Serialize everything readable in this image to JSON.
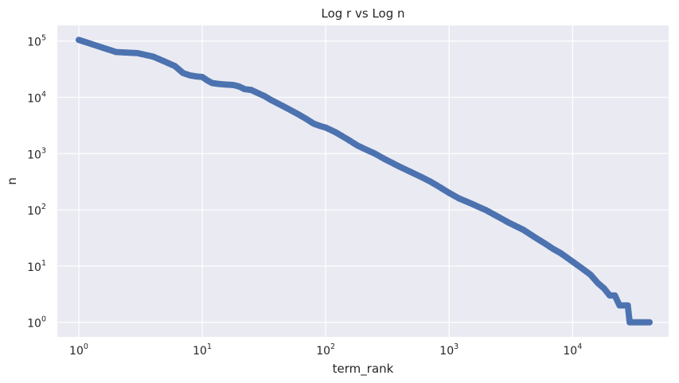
{
  "chart_data": {
    "type": "scatter",
    "title": "Log r vs Log n",
    "xlabel": "term_rank",
    "ylabel": "n",
    "xscale": "log",
    "yscale": "log",
    "xlim": [
      0.67,
      60000
    ],
    "ylim": [
      0.55,
      190000
    ],
    "grid": true,
    "marker_color": "#4c72b0",
    "background_color": "#eaeaf2",
    "x_ticks": [
      {
        "base": "10",
        "exp": "0",
        "value": 1
      },
      {
        "base": "10",
        "exp": "1",
        "value": 10
      },
      {
        "base": "10",
        "exp": "2",
        "value": 100
      },
      {
        "base": "10",
        "exp": "3",
        "value": 1000
      },
      {
        "base": "10",
        "exp": "4",
        "value": 10000
      }
    ],
    "y_ticks": [
      {
        "base": "10",
        "exp": "0",
        "value": 1
      },
      {
        "base": "10",
        "exp": "1",
        "value": 10
      },
      {
        "base": "10",
        "exp": "2",
        "value": 100
      },
      {
        "base": "10",
        "exp": "3",
        "value": 1000
      },
      {
        "base": "10",
        "exp": "4",
        "value": 10000
      },
      {
        "base": "10",
        "exp": "5",
        "value": 100000
      }
    ],
    "points": [
      [
        1,
        105000
      ],
      [
        2,
        64000
      ],
      [
        3,
        61000
      ],
      [
        4,
        53000
      ],
      [
        5,
        43000
      ],
      [
        6,
        36000
      ],
      [
        7,
        27000
      ],
      [
        8,
        24500
      ],
      [
        9,
        23500
      ],
      [
        10,
        23000
      ],
      [
        11,
        20000
      ],
      [
        12,
        18000
      ],
      [
        13,
        17500
      ],
      [
        14,
        17200
      ],
      [
        15,
        17000
      ],
      [
        16,
        16800
      ],
      [
        17,
        16700
      ],
      [
        18,
        16500
      ],
      [
        19,
        16000
      ],
      [
        20,
        15500
      ],
      [
        22,
        14000
      ],
      [
        25,
        13500
      ],
      [
        28,
        12000
      ],
      [
        32,
        10500
      ],
      [
        36,
        9000
      ],
      [
        40,
        8000
      ],
      [
        45,
        7000
      ],
      [
        50,
        6200
      ],
      [
        60,
        5000
      ],
      [
        70,
        4100
      ],
      [
        80,
        3400
      ],
      [
        90,
        3100
      ],
      [
        100,
        2900
      ],
      [
        120,
        2400
      ],
      [
        150,
        1800
      ],
      [
        180,
        1400
      ],
      [
        200,
        1250
      ],
      [
        250,
        1000
      ],
      [
        300,
        800
      ],
      [
        400,
        580
      ],
      [
        500,
        460
      ],
      [
        600,
        380
      ],
      [
        700,
        320
      ],
      [
        800,
        270
      ],
      [
        1000,
        200
      ],
      [
        1200,
        160
      ],
      [
        1500,
        130
      ],
      [
        2000,
        98
      ],
      [
        2500,
        75
      ],
      [
        3000,
        60
      ],
      [
        4000,
        44
      ],
      [
        5000,
        32
      ],
      [
        6000,
        25
      ],
      [
        7000,
        20
      ],
      [
        8000,
        17
      ],
      [
        10000,
        12
      ],
      [
        12000,
        9
      ],
      [
        14000,
        7
      ],
      [
        16000,
        5
      ],
      [
        18000,
        4
      ],
      [
        20000,
        3
      ],
      [
        22000,
        3
      ],
      [
        24000,
        2
      ],
      [
        26000,
        2
      ],
      [
        28000,
        2
      ],
      [
        29000,
        1
      ],
      [
        32000,
        1
      ],
      [
        35000,
        1
      ],
      [
        38000,
        1
      ],
      [
        42000,
        1
      ]
    ]
  }
}
